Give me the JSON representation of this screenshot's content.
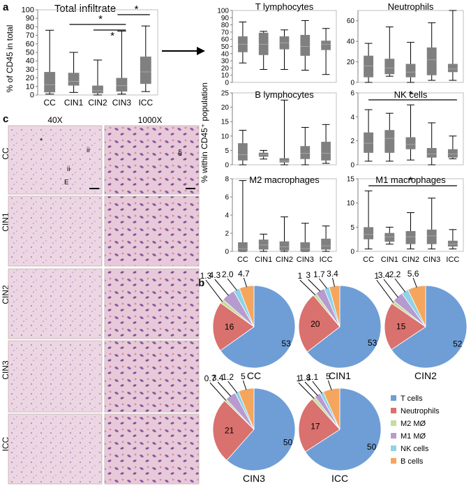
{
  "panel_a": {
    "label": "a",
    "title": "Total infiltrate",
    "ylabel": "% of CD45 in total",
    "sig_marks": [
      "*",
      "*",
      "*"
    ]
  },
  "panel_b": {
    "label": "b"
  },
  "panel_c": {
    "label": "c",
    "col_headers": [
      "40X",
      "1000X"
    ],
    "rows": [
      "CC",
      "CIN1",
      "CIN2",
      "CIN3",
      "ICC"
    ],
    "markers": [
      "*",
      "ii",
      "ii",
      "E",
      "§"
    ]
  },
  "shared_ylabel": "% within CD45⁺ population",
  "chart_data": [
    {
      "id": "total-infiltrate",
      "type": "box",
      "title": "Total infiltrate",
      "ylabel": "% of CD45 in total",
      "categories": [
        "CC",
        "CIN1",
        "CIN2",
        "CIN3",
        "ICC"
      ],
      "ylim": [
        0,
        100
      ],
      "yticks": [
        0,
        10,
        20,
        30,
        40,
        50,
        60,
        70,
        80,
        90,
        100
      ],
      "boxes": [
        {
          "min": 1,
          "q1": 3,
          "median": 12,
          "q3": 27,
          "max": 76
        },
        {
          "min": 3,
          "q1": 11,
          "median": 16,
          "q3": 26,
          "max": 50
        },
        {
          "min": 0,
          "q1": 2,
          "median": 5,
          "q3": 11,
          "max": 41
        },
        {
          "min": 1,
          "q1": 4,
          "median": 11,
          "q3": 20,
          "max": 75
        },
        {
          "min": 4,
          "q1": 13,
          "median": 27,
          "q3": 45,
          "max": 81
        }
      ],
      "significance": [
        {
          "from": "CIN1",
          "to": "CIN3",
          "label": "*"
        },
        {
          "from": "CIN2",
          "to": "CIN3",
          "label": "*"
        },
        {
          "from": "CIN3",
          "to": "ICC",
          "label": "*"
        }
      ]
    },
    {
      "id": "t-lymphocytes",
      "type": "box",
      "title": "T lymphocytes",
      "categories": [
        "CC",
        "CIN1",
        "CIN2",
        "CIN3",
        "ICC"
      ],
      "ylim": [
        0,
        100
      ],
      "yticks": [
        0,
        10,
        20,
        30,
        40,
        50,
        60,
        70,
        80,
        90,
        100
      ],
      "boxes": [
        {
          "min": 27,
          "q1": 42,
          "median": 53,
          "q3": 64,
          "max": 84
        },
        {
          "min": 18,
          "q1": 38,
          "median": 53,
          "q3": 69,
          "max": 71
        },
        {
          "min": 18,
          "q1": 46,
          "median": 55,
          "q3": 64,
          "max": 73
        },
        {
          "min": 17,
          "q1": 37,
          "median": 50,
          "q3": 66,
          "max": 86
        },
        {
          "min": 11,
          "q1": 45,
          "median": 53,
          "q3": 58,
          "max": 75
        }
      ]
    },
    {
      "id": "neutrophils",
      "type": "box",
      "title": "Neutrophils",
      "categories": [
        "CC",
        "CIN1",
        "CIN2",
        "CIN3",
        "ICC"
      ],
      "ylim": [
        0,
        70
      ],
      "yticks": [
        0,
        20,
        40,
        60
      ],
      "boxes": [
        {
          "min": 0,
          "q1": 5,
          "median": 16,
          "q3": 26,
          "max": 38
        },
        {
          "min": 6,
          "q1": 8,
          "median": 14,
          "q3": 23,
          "max": 54
        },
        {
          "min": 0,
          "q1": 5,
          "median": 10,
          "q3": 18,
          "max": 39
        },
        {
          "min": 2,
          "q1": 7,
          "median": 22,
          "q3": 34,
          "max": 58
        },
        {
          "min": 2,
          "q1": 10,
          "median": 13,
          "q3": 18,
          "max": 70
        }
      ]
    },
    {
      "id": "b-lymphocytes",
      "type": "box",
      "title": "B lymphocytes",
      "categories": [
        "CC",
        "CIN1",
        "CIN2",
        "CIN3",
        "ICC"
      ],
      "ylim": [
        0,
        25
      ],
      "yticks": [
        0,
        5,
        10,
        15,
        20,
        25
      ],
      "boxes": [
        {
          "min": 0,
          "q1": 1.5,
          "median": 3.5,
          "q3": 7.5,
          "max": 12
        },
        {
          "min": 2,
          "q1": 2.8,
          "median": 3.5,
          "q3": 4.2,
          "max": 5
        },
        {
          "min": 0,
          "q1": 0.8,
          "median": 1.3,
          "q3": 2.3,
          "max": 22.5
        },
        {
          "min": 0,
          "q1": 2,
          "median": 4,
          "q3": 6.5,
          "max": 13
        },
        {
          "min": 0.5,
          "q1": 1.5,
          "median": 4,
          "q3": 8,
          "max": 14
        }
      ]
    },
    {
      "id": "nk-cells",
      "type": "box",
      "title": "NK cells",
      "categories": [
        "CC",
        "CIN1",
        "CIN2",
        "CIN3",
        "ICC"
      ],
      "ylim": [
        0,
        6
      ],
      "yticks": [
        0,
        2,
        4,
        6
      ],
      "boxes": [
        {
          "min": 0.3,
          "q1": 1,
          "median": 1.8,
          "q3": 2.7,
          "max": 4.6
        },
        {
          "min": 0.3,
          "q1": 1,
          "median": 2.2,
          "q3": 2.9,
          "max": 4.3
        },
        {
          "min": 0.4,
          "q1": 1.3,
          "median": 1.7,
          "q3": 2.3,
          "max": 5
        },
        {
          "min": 0,
          "q1": 0.6,
          "median": 0.9,
          "q3": 1.4,
          "max": 3.5
        },
        {
          "min": 0.5,
          "q1": 0.6,
          "median": 0.9,
          "q3": 1.3,
          "max": 2.4
        }
      ],
      "significance": [
        {
          "from": "CC",
          "to": "ICC",
          "label": "*"
        }
      ]
    },
    {
      "id": "m2-macrophages",
      "type": "box",
      "title": "M2 macrophages",
      "categories": [
        "CC",
        "CIN1",
        "CIN2",
        "CIN3",
        "ICC"
      ],
      "ylim": [
        0,
        8
      ],
      "yticks": [
        0,
        2,
        4,
        6,
        8
      ],
      "boxes": [
        {
          "min": 0,
          "q1": 0,
          "median": 0.3,
          "q3": 1,
          "max": 7.8
        },
        {
          "min": 0,
          "q1": 0.2,
          "median": 0.7,
          "q3": 1.3,
          "max": 1.9
        },
        {
          "min": 0,
          "q1": 0.1,
          "median": 0.5,
          "q3": 1.1,
          "max": 3.8
        },
        {
          "min": 0,
          "q1": 0,
          "median": 0.3,
          "q3": 1,
          "max": 3.1
        },
        {
          "min": 0,
          "q1": 0.2,
          "median": 0.6,
          "q3": 1.4,
          "max": 2.8
        }
      ]
    },
    {
      "id": "m1-macrophages",
      "type": "box",
      "title": "M1 macrophages",
      "categories": [
        "CC",
        "CIN1",
        "CIN2",
        "CIN3",
        "ICC"
      ],
      "ylim": [
        0,
        15
      ],
      "yticks": [
        0,
        5,
        10,
        15
      ],
      "boxes": [
        {
          "min": 0.5,
          "q1": 2.5,
          "median": 3.5,
          "q3": 5,
          "max": 12.5
        },
        {
          "min": 1.5,
          "q1": 2,
          "median": 3,
          "q3": 3.8,
          "max": 5
        },
        {
          "min": 0.5,
          "q1": 1.5,
          "median": 3,
          "q3": 4.2,
          "max": 8
        },
        {
          "min": 0.5,
          "q1": 1.5,
          "median": 3.2,
          "q3": 4.5,
          "max": 11
        },
        {
          "min": 0.5,
          "q1": 1,
          "median": 1.5,
          "q3": 2.2,
          "max": 4.5
        }
      ],
      "significance": [
        {
          "from": "CC",
          "to": "ICC",
          "label": "*"
        }
      ]
    },
    {
      "id": "pie-cc",
      "type": "pie",
      "label": "CC",
      "slices": [
        {
          "name": "T cells",
          "value": 53,
          "label": "53"
        },
        {
          "name": "Neutrophils",
          "value": 16,
          "label": "16"
        },
        {
          "name": "M2 MØ",
          "value": 1.3,
          "label": "1.3"
        },
        {
          "name": "M1 MØ",
          "value": 4.3,
          "label": "4.3"
        },
        {
          "name": "NK cells",
          "value": 2.0,
          "label": "2.0"
        },
        {
          "name": "B cells",
          "value": 4.7,
          "label": "4.7"
        }
      ]
    },
    {
      "id": "pie-cin1",
      "type": "pie",
      "label": "CIN1",
      "slices": [
        {
          "name": "T cells",
          "value": 53,
          "label": "53"
        },
        {
          "name": "Neutrophils",
          "value": 20,
          "label": "20"
        },
        {
          "name": "M2 MØ",
          "value": 1,
          "label": "1"
        },
        {
          "name": "M1 MØ",
          "value": 3,
          "label": "3"
        },
        {
          "name": "NK cells",
          "value": 1.7,
          "label": "1.7"
        },
        {
          "name": "B cells",
          "value": 3.4,
          "label": "3.4"
        }
      ]
    },
    {
      "id": "pie-cin2",
      "type": "pie",
      "label": "CIN2",
      "slices": [
        {
          "name": "T cells",
          "value": 52,
          "label": "52"
        },
        {
          "name": "Neutrophils",
          "value": 15,
          "label": "15"
        },
        {
          "name": "M2 MØ",
          "value": 1,
          "label": "1"
        },
        {
          "name": "M1 MØ",
          "value": 3.4,
          "label": "3.4"
        },
        {
          "name": "NK cells",
          "value": 2.2,
          "label": "2.2"
        },
        {
          "name": "B cells",
          "value": 5.6,
          "label": "5.6"
        }
      ]
    },
    {
      "id": "pie-cin3",
      "type": "pie",
      "label": "CIN3",
      "slices": [
        {
          "name": "T cells",
          "value": 50,
          "label": "50"
        },
        {
          "name": "Neutrophils",
          "value": 21,
          "label": "21"
        },
        {
          "name": "M2 MØ",
          "value": 0.7,
          "label": "0.7"
        },
        {
          "name": "M1 MØ",
          "value": 3.4,
          "label": "3.4"
        },
        {
          "name": "NK cells",
          "value": 1.2,
          "label": "1.2"
        },
        {
          "name": "B cells",
          "value": 5,
          "label": "5"
        }
      ]
    },
    {
      "id": "pie-icc",
      "type": "pie",
      "label": "ICC",
      "slices": [
        {
          "name": "T cells",
          "value": 50,
          "label": "50"
        },
        {
          "name": "Neutrophils",
          "value": 17,
          "label": "17"
        },
        {
          "name": "M2 MØ",
          "value": 1,
          "label": "1"
        },
        {
          "name": "M1 MØ",
          "value": 1.8,
          "label": "1.8"
        },
        {
          "name": "NK cells",
          "value": 1.1,
          "label": "1.1"
        },
        {
          "name": "B cells",
          "value": 5,
          "label": "5"
        }
      ]
    }
  ],
  "legend": [
    {
      "name": "T cells",
      "color": "#6f9ed6"
    },
    {
      "name": "Neutrophils",
      "color": "#d9716e"
    },
    {
      "name": "M2 MØ",
      "color": "#c5dd9a"
    },
    {
      "name": "M1 MØ",
      "color": "#b79bd0"
    },
    {
      "name": "NK cells",
      "color": "#8fd3e6"
    },
    {
      "name": "B cells",
      "color": "#f4a65e"
    }
  ],
  "colors": {
    "box": "#808080",
    "whisker": "#000000"
  }
}
